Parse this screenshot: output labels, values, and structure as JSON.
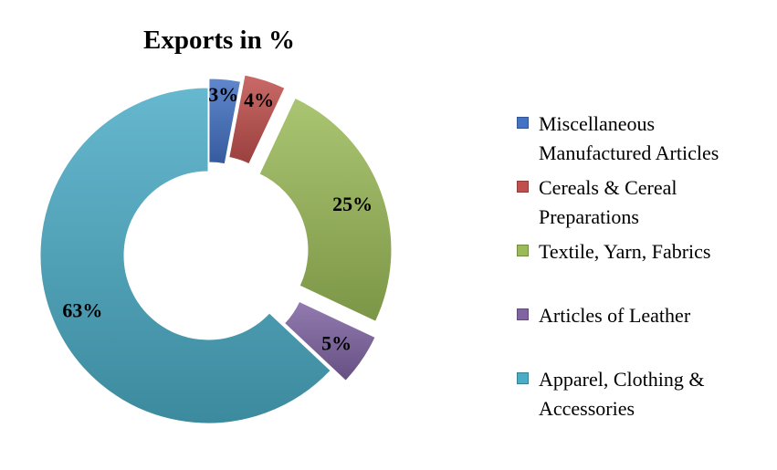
{
  "chart_data": {
    "type": "pie",
    "title": "Exports in %",
    "donut": true,
    "exploded": true,
    "legend_position": "right",
    "slices": [
      {
        "label": "Miscellaneous Manufactured Articles",
        "value": 3,
        "value_label": "3%",
        "color": "#4472C4"
      },
      {
        "label": "Cereals & Cereal Preparations",
        "value": 4,
        "value_label": "4%",
        "color": "#C0504D"
      },
      {
        "label": "Textile, Yarn, Fabrics",
        "value": 25,
        "value_label": "25%",
        "color": "#9BBB59"
      },
      {
        "label": "Articles of Leather",
        "value": 5,
        "value_label": "5%",
        "color": "#8064A2"
      },
      {
        "label": "Apparel, Clothing & Accessories",
        "value": 63,
        "value_label": "63%",
        "color": "#4BACC6"
      }
    ]
  }
}
